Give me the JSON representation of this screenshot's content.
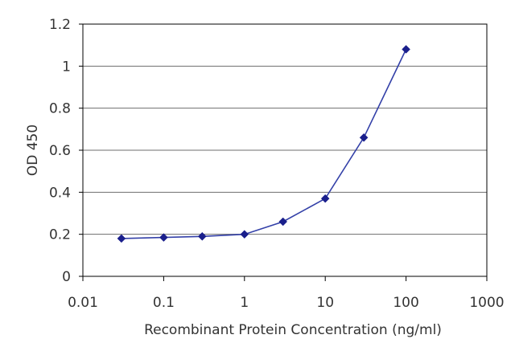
{
  "chart_data": {
    "type": "line",
    "title": "",
    "xlabel": "Recombinant Protein Concentration (ng/ml)",
    "ylabel": "OD 450",
    "x_scale": "log",
    "xlim": [
      0.01,
      1000
    ],
    "ylim": [
      0,
      1.2
    ],
    "x_ticks": [
      "0.01",
      "0.1",
      "1",
      "10",
      "100",
      "1000"
    ],
    "y_ticks": [
      "0",
      "0.2",
      "0.4",
      "0.6",
      "0.8",
      "1",
      "1.2"
    ],
    "grid": "horizontal",
    "series": [
      {
        "x": [
          0.03,
          0.1,
          0.3,
          1,
          3,
          10,
          30,
          100
        ],
        "y": [
          0.18,
          0.185,
          0.19,
          0.2,
          0.26,
          0.37,
          0.66,
          1.08
        ]
      }
    ],
    "colors": {
      "line": "#3340a8",
      "marker": "#1a1f8c",
      "grid": "#6e6e6e",
      "axis": "#000000"
    }
  }
}
